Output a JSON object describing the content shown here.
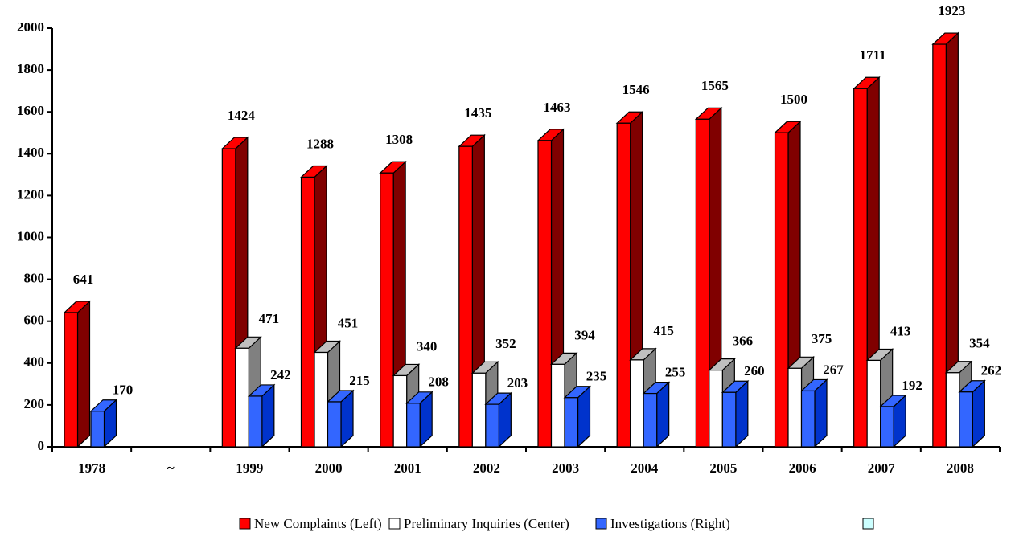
{
  "chart_data": {
    "type": "bar3d",
    "categories": [
      "1978",
      "~",
      "1999",
      "2000",
      "2001",
      "2002",
      "2003",
      "2004",
      "2005",
      "2006",
      "2007",
      "2008"
    ],
    "series": [
      {
        "name": "New Complaints (Left)",
        "color": "#ff0000",
        "values": [
          641,
          null,
          1424,
          1288,
          1308,
          1435,
          1463,
          1546,
          1565,
          1500,
          1711,
          1923
        ]
      },
      {
        "name": "Preliminary Inquiries (Center)",
        "color": "#ffffff",
        "values": [
          null,
          null,
          471,
          451,
          340,
          352,
          394,
          415,
          366,
          375,
          413,
          354
        ]
      },
      {
        "name": "Investigations (Right)",
        "color": "#3366ff",
        "values": [
          170,
          null,
          242,
          215,
          208,
          203,
          235,
          255,
          260,
          267,
          192,
          262
        ]
      }
    ],
    "ylim": [
      0,
      2000
    ],
    "yticks": [
      0,
      200,
      400,
      600,
      800,
      1000,
      1200,
      1400,
      1600,
      1800,
      2000
    ],
    "grid": false
  }
}
